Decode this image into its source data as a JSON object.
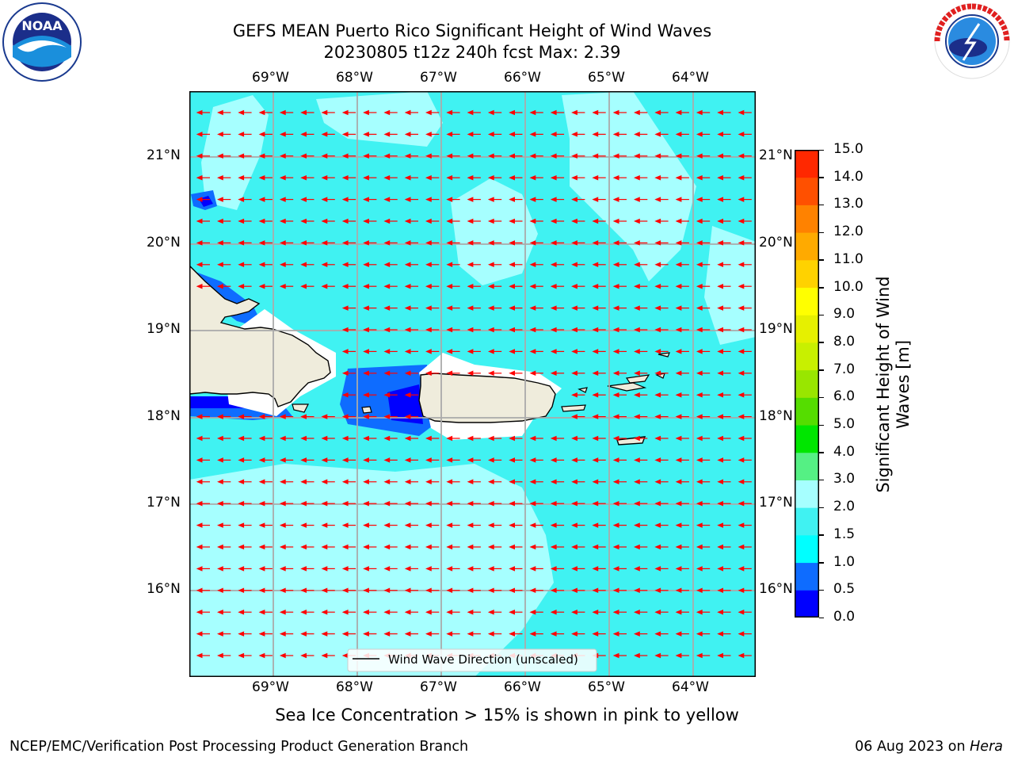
{
  "title": {
    "line1": "GEFS MEAN Puerto Rico Significant Height of Wind Waves",
    "line2": "20230805 t12z 240h fcst   Max: 2.39"
  },
  "logos": {
    "left": {
      "icon": "noaa-logo",
      "text": "NOAA"
    },
    "right": {
      "icon": "national-weather-service-logo",
      "text": "NATIONAL WEATHER SERVICE"
    }
  },
  "map": {
    "lon_ticks": [
      "69°W",
      "68°W",
      "67°W",
      "66°W",
      "65°W",
      "64°W"
    ],
    "lat_ticks": [
      "21°N",
      "20°N",
      "19°N",
      "18°N",
      "17°N",
      "16°N"
    ],
    "legend": "Wind Wave Direction (unscaled)",
    "arrow_color": "#ff0000",
    "land_color": "#efecdc",
    "note": "Sea Ice Concentration > 15% is shown in pink to yellow"
  },
  "colorbar": {
    "label_line1": "Significant Height of Wind",
    "label_line2": "Waves [m]",
    "ticks": [
      "0.0",
      "0.5",
      "1.0",
      "1.5",
      "2.0",
      "3.0",
      "4.0",
      "5.0",
      "6.0",
      "7.0",
      "8.0",
      "9.0",
      "10.0",
      "11.0",
      "12.0",
      "13.0",
      "14.0",
      "15.0"
    ],
    "colors": [
      "#0000ff",
      "#0e6cff",
      "#00ffff",
      "#40f2f2",
      "#a6ffff",
      "#55f084",
      "#00e600",
      "#55dd00",
      "#99e600",
      "#c8f000",
      "#e6f000",
      "#ffff00",
      "#ffd200",
      "#ffaa00",
      "#ff8200",
      "#ff5000",
      "#ff2800",
      "#ff0000"
    ]
  },
  "footer": {
    "left": "NCEP/EMC/Verification Post Processing Product Generation Branch",
    "right_prefix": "06 Aug 2023 on ",
    "right_host": "Hera"
  }
}
